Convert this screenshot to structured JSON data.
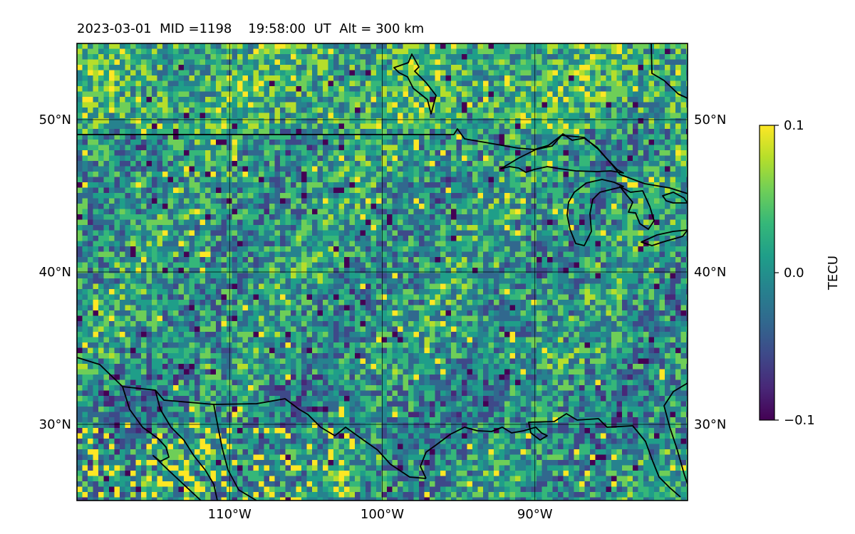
{
  "title": {
    "date": "2023-03-01",
    "mid": "MID =1198",
    "time": "19:58:00",
    "time_zone": "UT",
    "altitude": "Alt = 300 km"
  },
  "map": {
    "lon_range": [
      -120,
      -80
    ],
    "lat_range": [
      25,
      55
    ],
    "gridlines": true,
    "lat_ticks": [
      {
        "value": 50,
        "label": "50°N"
      },
      {
        "value": 40,
        "label": "40°N"
      },
      {
        "value": 30,
        "label": "30°N"
      }
    ],
    "lon_ticks": [
      {
        "value": -110,
        "label": "110°W"
      },
      {
        "value": -100,
        "label": "100°W"
      },
      {
        "value": -90,
        "label": "90°W"
      }
    ],
    "field": "gridded TEC perturbation, noisy speckle pattern, mostly near 0",
    "colormap": "viridis",
    "coastlines_and_borders": true
  },
  "colorbar": {
    "label": "TECU",
    "min": -0.1,
    "max": 0.1,
    "ticks": [
      {
        "value": 0.1,
        "label": "0.1"
      },
      {
        "value": 0.0,
        "label": "0.0"
      },
      {
        "value": -0.1,
        "label": "−0.1"
      }
    ]
  },
  "colors": {
    "viridis": [
      "#440154",
      "#482878",
      "#3e4989",
      "#31688e",
      "#26828e",
      "#1f9e89",
      "#35b779",
      "#6ece58",
      "#b5de2b",
      "#fde725"
    ],
    "border_line": "#000000",
    "grid_line": "#000000"
  }
}
